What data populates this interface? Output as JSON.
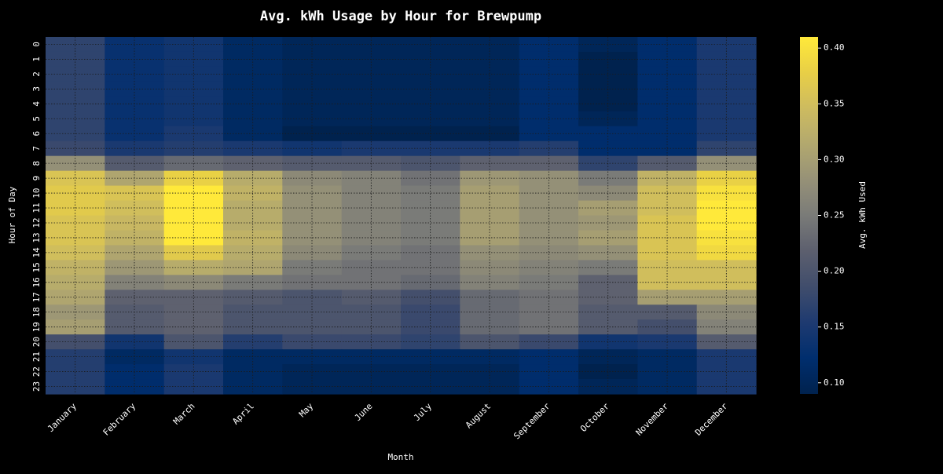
{
  "chart_data": {
    "type": "heatmap",
    "title": "Avg. kWh Usage by Hour for Brewpump",
    "xlabel": "Month",
    "ylabel": "Hour of Day",
    "colorbar_label": "Avg. kWh Used",
    "colormap": "cividis",
    "vmin": 0.09,
    "vmax": 0.41,
    "colorbar_ticks": [
      "0.10",
      "0.15",
      "0.20",
      "0.25",
      "0.30",
      "0.35",
      "0.40"
    ],
    "grid": true,
    "x_categories": [
      "January",
      "February",
      "March",
      "April",
      "May",
      "June",
      "July",
      "August",
      "September",
      "October",
      "November",
      "December"
    ],
    "y_categories": [
      "0",
      "1",
      "2",
      "3",
      "4",
      "5",
      "6",
      "7",
      "8",
      "9",
      "10",
      "11",
      "12",
      "13",
      "14",
      "15",
      "16",
      "17",
      "18",
      "19",
      "20",
      "21",
      "22",
      "23"
    ],
    "values": [
      [
        0.17,
        0.13,
        0.14,
        0.11,
        0.1,
        0.1,
        0.1,
        0.1,
        0.12,
        0.1,
        0.12,
        0.15
      ],
      [
        0.17,
        0.13,
        0.14,
        0.11,
        0.1,
        0.1,
        0.1,
        0.1,
        0.12,
        0.09,
        0.12,
        0.15
      ],
      [
        0.17,
        0.13,
        0.14,
        0.11,
        0.1,
        0.1,
        0.1,
        0.1,
        0.12,
        0.09,
        0.12,
        0.15
      ],
      [
        0.17,
        0.13,
        0.14,
        0.11,
        0.1,
        0.1,
        0.1,
        0.1,
        0.12,
        0.09,
        0.12,
        0.15
      ],
      [
        0.17,
        0.13,
        0.14,
        0.11,
        0.1,
        0.1,
        0.1,
        0.1,
        0.12,
        0.09,
        0.12,
        0.15
      ],
      [
        0.17,
        0.13,
        0.14,
        0.11,
        0.1,
        0.1,
        0.1,
        0.1,
        0.12,
        0.1,
        0.12,
        0.15
      ],
      [
        0.17,
        0.13,
        0.15,
        0.11,
        0.09,
        0.09,
        0.09,
        0.09,
        0.12,
        0.12,
        0.12,
        0.15
      ],
      [
        0.18,
        0.15,
        0.16,
        0.15,
        0.14,
        0.15,
        0.15,
        0.15,
        0.16,
        0.12,
        0.12,
        0.17
      ],
      [
        0.28,
        0.21,
        0.23,
        0.22,
        0.21,
        0.21,
        0.2,
        0.22,
        0.22,
        0.17,
        0.21,
        0.28
      ],
      [
        0.36,
        0.31,
        0.38,
        0.32,
        0.27,
        0.26,
        0.24,
        0.29,
        0.28,
        0.25,
        0.33,
        0.38
      ],
      [
        0.37,
        0.36,
        0.41,
        0.33,
        0.28,
        0.26,
        0.25,
        0.3,
        0.28,
        0.27,
        0.35,
        0.4
      ],
      [
        0.37,
        0.35,
        0.41,
        0.32,
        0.28,
        0.26,
        0.25,
        0.3,
        0.28,
        0.3,
        0.35,
        0.41
      ],
      [
        0.36,
        0.34,
        0.41,
        0.32,
        0.28,
        0.26,
        0.25,
        0.3,
        0.28,
        0.29,
        0.36,
        0.41
      ],
      [
        0.36,
        0.33,
        0.41,
        0.33,
        0.28,
        0.26,
        0.25,
        0.3,
        0.28,
        0.3,
        0.36,
        0.4
      ],
      [
        0.35,
        0.31,
        0.37,
        0.32,
        0.27,
        0.25,
        0.24,
        0.28,
        0.27,
        0.28,
        0.36,
        0.39
      ],
      [
        0.33,
        0.29,
        0.32,
        0.31,
        0.25,
        0.24,
        0.24,
        0.27,
        0.26,
        0.25,
        0.35,
        0.35
      ],
      [
        0.32,
        0.26,
        0.27,
        0.25,
        0.24,
        0.24,
        0.23,
        0.26,
        0.25,
        0.22,
        0.35,
        0.35
      ],
      [
        0.31,
        0.22,
        0.22,
        0.21,
        0.2,
        0.21,
        0.19,
        0.23,
        0.24,
        0.22,
        0.3,
        0.3
      ],
      [
        0.29,
        0.21,
        0.22,
        0.2,
        0.2,
        0.2,
        0.18,
        0.23,
        0.24,
        0.21,
        0.21,
        0.27
      ],
      [
        0.3,
        0.21,
        0.22,
        0.2,
        0.2,
        0.2,
        0.18,
        0.23,
        0.24,
        0.21,
        0.19,
        0.26
      ],
      [
        0.19,
        0.14,
        0.2,
        0.16,
        0.18,
        0.18,
        0.17,
        0.2,
        0.18,
        0.14,
        0.15,
        0.21
      ],
      [
        0.16,
        0.11,
        0.14,
        0.11,
        0.11,
        0.11,
        0.11,
        0.11,
        0.12,
        0.1,
        0.11,
        0.15
      ],
      [
        0.16,
        0.12,
        0.15,
        0.11,
        0.1,
        0.1,
        0.1,
        0.1,
        0.12,
        0.09,
        0.11,
        0.15
      ],
      [
        0.16,
        0.12,
        0.15,
        0.11,
        0.1,
        0.1,
        0.1,
        0.1,
        0.12,
        0.1,
        0.11,
        0.15
      ]
    ]
  }
}
